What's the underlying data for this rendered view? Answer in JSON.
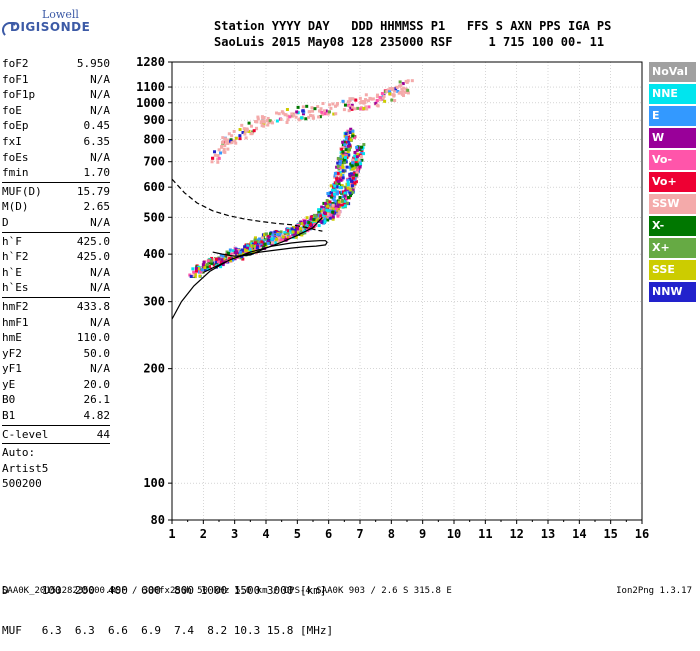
{
  "logo": {
    "line1": "Lowell",
    "line2": "DIGISONDE"
  },
  "header": {
    "line1": "Station YYYY DAY   DDD HHMMSS P1   FFS S AXN PPS IGA PS",
    "line2": "SaoLuis 2015 May08 128 235000 RSF     1 715 100 00- 11"
  },
  "params": [
    {
      "label": "foF2",
      "value": "5.950"
    },
    {
      "label": "foF1",
      "value": "N/A"
    },
    {
      "label": "foF1p",
      "value": "N/A"
    },
    {
      "label": "foE",
      "value": "N/A"
    },
    {
      "label": "foEp",
      "value": "0.45"
    },
    {
      "label": "fxI",
      "value": "6.35"
    },
    {
      "label": "foEs",
      "value": "N/A"
    },
    {
      "label": "fmin",
      "value": "1.70"
    },
    {
      "sep": true
    },
    {
      "label": "MUF(D)",
      "value": "15.79"
    },
    {
      "label": "M(D)",
      "value": "2.65"
    },
    {
      "label": "D",
      "value": "N/A"
    },
    {
      "sep": true
    },
    {
      "label": "h`F",
      "value": "425.0"
    },
    {
      "label": "h`F2",
      "value": "425.0"
    },
    {
      "label": "h`E",
      "value": "N/A"
    },
    {
      "label": "h`Es",
      "value": "N/A"
    },
    {
      "sep": true
    },
    {
      "label": "hmF2",
      "value": "433.8"
    },
    {
      "label": "hmF1",
      "value": "N/A"
    },
    {
      "label": "hmE",
      "value": "110.0"
    },
    {
      "label": "yF2",
      "value": "50.0"
    },
    {
      "label": "yF1",
      "value": "N/A"
    },
    {
      "label": "yE",
      "value": "20.0"
    },
    {
      "label": "B0",
      "value": "26.1"
    },
    {
      "label": "B1",
      "value": "4.82"
    },
    {
      "sep": true
    },
    {
      "label": "C-level",
      "value": "44"
    },
    {
      "sep": true
    },
    {
      "text": "Auto:"
    },
    {
      "text": "Artist5"
    },
    {
      "text": "500200"
    }
  ],
  "legend": [
    {
      "label": "NoVal",
      "color": "#a0a0a0"
    },
    {
      "label": "NNE",
      "color": "#00e5ee"
    },
    {
      "label": "E",
      "color": "#3399ff"
    },
    {
      "label": "W",
      "color": "#990099"
    },
    {
      "label": "Vo-",
      "color": "#ff55aa"
    },
    {
      "label": "Vo+",
      "color": "#ee0033"
    },
    {
      "label": "SSW",
      "color": "#f4aaaa"
    },
    {
      "label": "X-",
      "color": "#007700"
    },
    {
      "label": "X+",
      "color": "#66aa44"
    },
    {
      "label": "SSE",
      "color": "#cccc00"
    },
    {
      "label": "NNW",
      "color": "#2222cc"
    }
  ],
  "distance_table": {
    "row1": "D     100  200  400  600  800 1000 1500 3000 [km]",
    "row2": "MUF   6.3  6.3  6.6  6.9  7.4  8.2 10.3 15.8 [MHz]"
  },
  "footer": {
    "file": "SAA0K_2015128235000.RSF / 300fx256h 50 kHz 5.0 km / DPS-4 SAA0K 903 / 2.6 S 315.8 E",
    "version": "Ion2Png 1.3.17"
  },
  "chart_data": {
    "type": "scatter",
    "x": {
      "min": 1,
      "max": 16,
      "ticks": [
        1,
        2,
        3,
        4,
        5,
        6,
        7,
        8,
        9,
        10,
        11,
        12,
        13,
        14,
        15,
        16
      ]
    },
    "y": {
      "min": 80,
      "max": 1280,
      "scale": "log",
      "ticks": [
        80,
        100,
        200,
        300,
        400,
        500,
        600,
        700,
        800,
        900,
        1000,
        1100,
        1280
      ]
    },
    "grid": true,
    "profile_solid": [
      [
        1.0,
        270
      ],
      [
        1.3,
        300
      ],
      [
        1.7,
        330
      ],
      [
        2.2,
        360
      ],
      [
        2.8,
        385
      ],
      [
        3.5,
        405
      ],
      [
        4.2,
        420
      ],
      [
        4.8,
        428
      ],
      [
        5.3,
        432
      ],
      [
        5.7,
        434
      ],
      [
        5.9,
        433.8
      ],
      [
        5.95,
        430
      ],
      [
        5.9,
        423
      ],
      [
        5.6,
        420
      ],
      [
        5.2,
        418
      ],
      [
        4.8,
        415
      ],
      [
        4.3,
        410
      ],
      [
        3.8,
        405
      ],
      [
        3.3,
        398
      ],
      [
        2.9,
        388
      ],
      [
        2.6,
        378
      ],
      [
        2.3,
        368
      ],
      [
        2.0,
        358
      ]
    ],
    "trace_solid": [
      [
        2.3,
        405
      ],
      [
        2.6,
        400
      ],
      [
        3.0,
        395
      ],
      [
        3.5,
        398
      ],
      [
        4.0,
        415
      ],
      [
        4.5,
        430
      ],
      [
        5.0,
        448
      ],
      [
        5.5,
        470
      ],
      [
        5.8,
        500
      ]
    ],
    "profile_dashed": [
      [
        1.0,
        630
      ],
      [
        1.4,
        580
      ],
      [
        1.8,
        545
      ],
      [
        2.3,
        520
      ],
      [
        2.8,
        505
      ],
      [
        3.3,
        495
      ],
      [
        3.8,
        488
      ],
      [
        4.3,
        482
      ],
      [
        4.8,
        478
      ],
      [
        5.3,
        470
      ],
      [
        5.6,
        463
      ],
      [
        5.8,
        460
      ]
    ],
    "echo_traces": [
      {
        "series": "o-trace",
        "points": [
          [
            1.7,
            355
          ],
          [
            2.0,
            370
          ],
          [
            2.5,
            385
          ],
          [
            3.0,
            400
          ],
          [
            3.5,
            420
          ],
          [
            4.0,
            438
          ],
          [
            4.5,
            450
          ],
          [
            5.0,
            465
          ],
          [
            5.5,
            490
          ],
          [
            5.8,
            510
          ],
          [
            6.0,
            540
          ],
          [
            6.2,
            580
          ],
          [
            6.3,
            620
          ],
          [
            6.4,
            680
          ],
          [
            6.5,
            730
          ],
          [
            6.6,
            790
          ],
          [
            6.7,
            840
          ]
        ]
      },
      {
        "series": "x-trace",
        "points": [
          [
            2.4,
            380
          ],
          [
            3.0,
            395
          ],
          [
            3.5,
            412
          ],
          [
            4.0,
            430
          ],
          [
            4.5,
            445
          ],
          [
            5.0,
            460
          ],
          [
            5.5,
            480
          ],
          [
            6.0,
            505
          ],
          [
            6.3,
            530
          ],
          [
            6.5,
            560
          ],
          [
            6.7,
            600
          ],
          [
            6.8,
            650
          ],
          [
            6.9,
            700
          ],
          [
            7.0,
            760
          ]
        ]
      },
      {
        "series": "second-hop",
        "points": [
          [
            2.3,
            720
          ],
          [
            2.8,
            790
          ],
          [
            3.3,
            840
          ],
          [
            3.8,
            880
          ],
          [
            4.3,
            905
          ],
          [
            4.8,
            925
          ],
          [
            5.3,
            940
          ],
          [
            5.8,
            955
          ],
          [
            6.3,
            965
          ],
          [
            6.8,
            985
          ],
          [
            7.3,
            1005
          ],
          [
            7.8,
            1040
          ],
          [
            8.2,
            1080
          ],
          [
            8.5,
            1110
          ]
        ]
      }
    ]
  }
}
